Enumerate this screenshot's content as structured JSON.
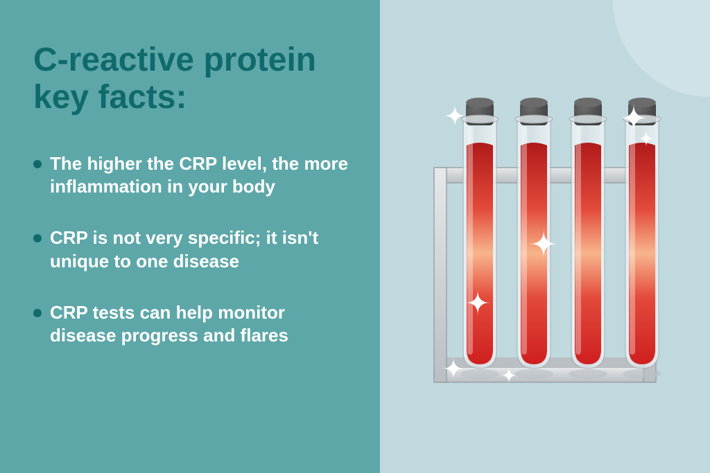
{
  "layout": {
    "left_bg": "#5ea7a8",
    "right_bg": "#c0d9de",
    "corner_arc_color": "#d9eaed"
  },
  "title": {
    "text": "C-reactive protein key facts:",
    "color": "#0f6a6c",
    "fontsize": 48
  },
  "bullets": {
    "color": "#ffffff",
    "dot_color": "#0f6a6c",
    "fontsize": 26,
    "items": [
      "The higher the CRP level, the more inflammation in your body",
      "CRP is not very specific; it isn't unique to one disease",
      "CRP tests can help monitor disease progress and flares"
    ]
  },
  "illustration": {
    "type": "test-tube-rack",
    "tube_count": 4,
    "rack_fill": "#e6e8ea",
    "rack_stroke": "#9aa2a8",
    "rack_shadow": "#b9bfc3",
    "tube_glass": "#dbe3e6",
    "tube_glass_highlight": "#f4f8fa",
    "cap_dark": "#3d3d3d",
    "cap_light": "#6b6b6b",
    "blood_top": "#b01a1a",
    "blood_mid": "#e24a3a",
    "blood_glow": "#f8b58c",
    "blood_bottom": "#cf1f1f",
    "sparkle_color": "#ffffff"
  }
}
